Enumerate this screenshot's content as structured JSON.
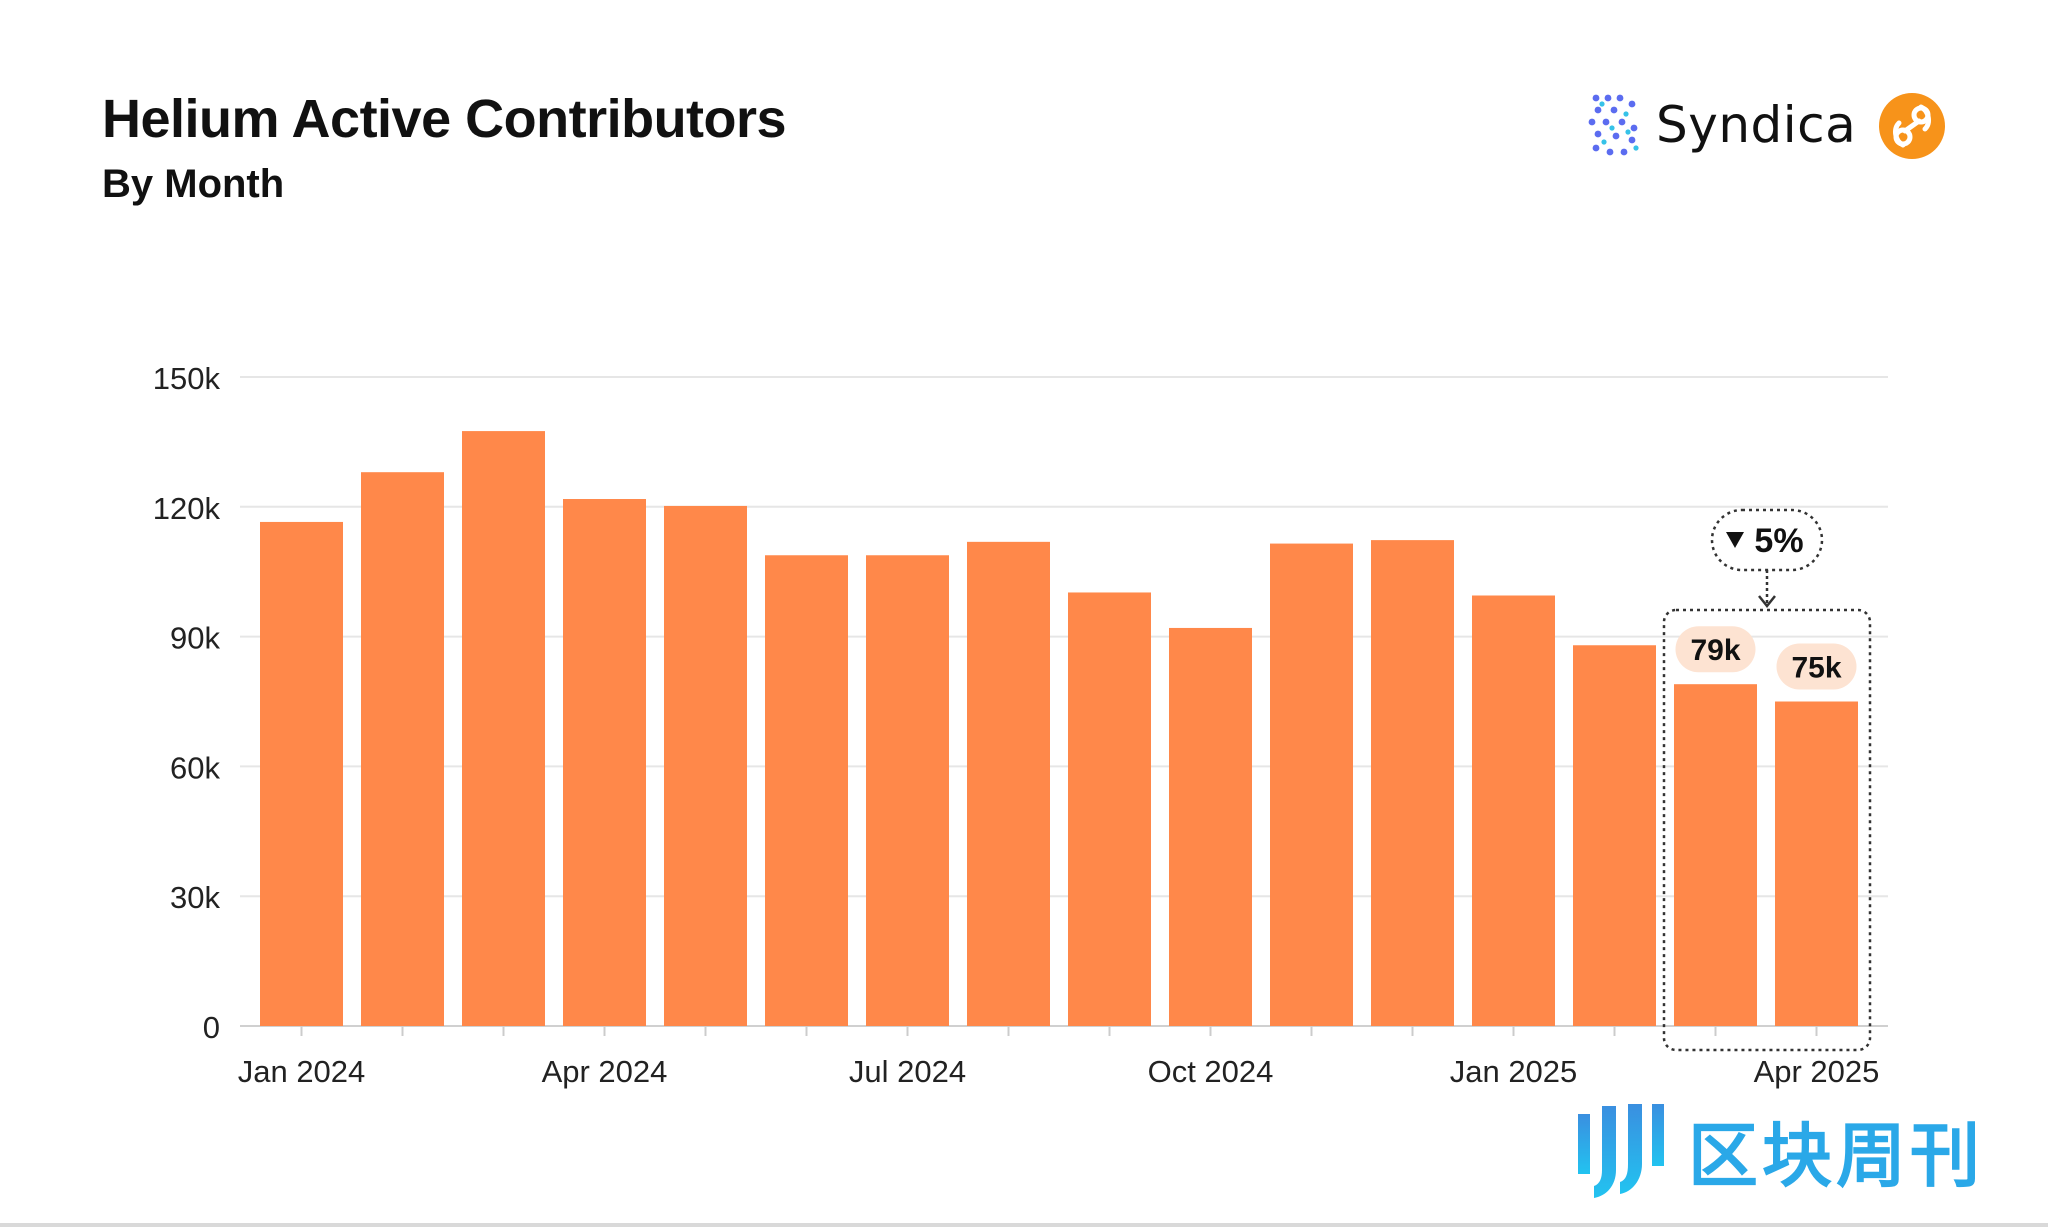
{
  "header": {
    "title": "Helium Active Contributors",
    "subtitle": "By Month"
  },
  "brand": {
    "name": "Syndica",
    "logo_icon": "syndica-logo-icon",
    "partner_icon": "helium-logo-icon",
    "partner_color": "#f7931a"
  },
  "watermark": {
    "text": "区块周刊",
    "icon": "block-weekly-logo-icon",
    "color": "#2aa8e8"
  },
  "chart_data": {
    "type": "bar",
    "categories": [
      "Jan 2024",
      "Feb 2024",
      "Mar 2024",
      "Apr 2024",
      "May 2024",
      "Jun 2024",
      "Jul 2024",
      "Aug 2024",
      "Sep 2024",
      "Oct 2024",
      "Nov 2024",
      "Dec 2024",
      "Jan 2025",
      "Feb 2025",
      "Mar 2025",
      "Apr 2025"
    ],
    "values": [
      116500,
      128000,
      137500,
      121800,
      120200,
      108800,
      108800,
      111900,
      100200,
      92000,
      111500,
      112300,
      99500,
      88000,
      79000,
      75000
    ],
    "x_tick_labels": [
      {
        "category": "Jan 2024",
        "label": "Jan 2024"
      },
      {
        "category": "Apr 2024",
        "label": "Apr 2024"
      },
      {
        "category": "Jul 2024",
        "label": "Jul 2024"
      },
      {
        "category": "Oct 2024",
        "label": "Oct 2024"
      },
      {
        "category": "Jan 2025",
        "label": "Jan 2025"
      },
      {
        "category": "Apr 2025",
        "label": "Apr 2025"
      }
    ],
    "y_ticks": [
      {
        "value": 0,
        "label": "0"
      },
      {
        "value": 30000,
        "label": "30k"
      },
      {
        "value": 60000,
        "label": "60k"
      },
      {
        "value": 90000,
        "label": "90k"
      },
      {
        "value": 120000,
        "label": "120k"
      },
      {
        "value": 150000,
        "label": "150k"
      }
    ],
    "ylim": [
      0,
      150000
    ],
    "grid": true,
    "bar_color": "#ff884a",
    "data_labels": [
      {
        "category": "Mar 2025",
        "label": "79k"
      },
      {
        "category": "Apr 2025",
        "label": "75k"
      }
    ],
    "callout": {
      "label": "5%",
      "direction": "down",
      "categories": [
        "Mar 2025",
        "Apr 2025"
      ]
    },
    "title": "Helium Active Contributors",
    "subtitle": "By Month",
    "xlabel": "",
    "ylabel": ""
  }
}
